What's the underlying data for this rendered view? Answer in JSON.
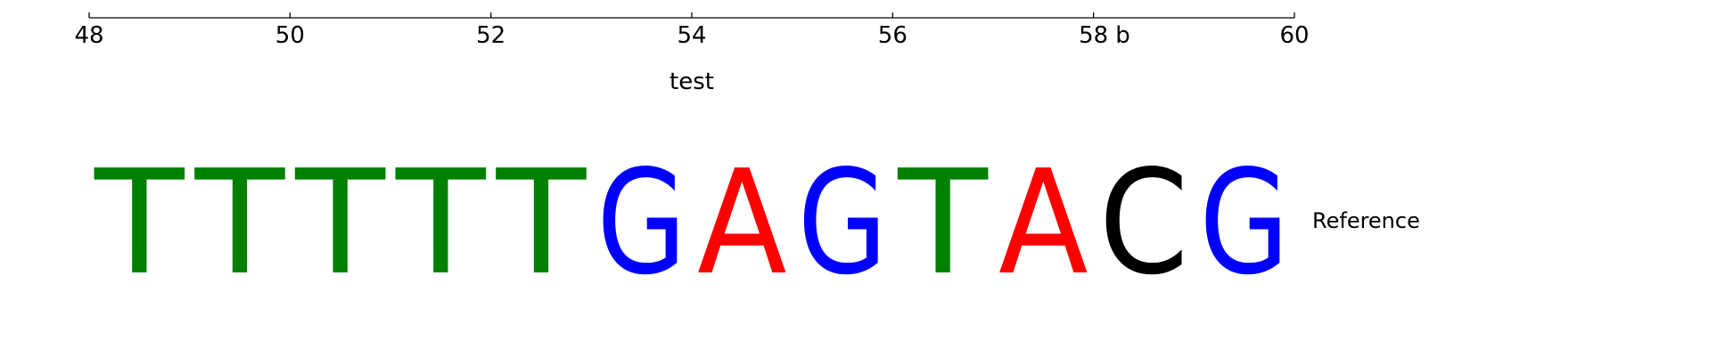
{
  "chart_data": {
    "type": "sequence_logo",
    "xlabel": "test",
    "xlim": [
      48,
      60
    ],
    "xticks": [
      48,
      50,
      52,
      54,
      56,
      58,
      60
    ],
    "tick_labels": [
      "48",
      "50",
      "52",
      "54",
      "56",
      "58",
      "60"
    ],
    "annotation": "b",
    "annotation_x": 58.2,
    "track_label": "Reference",
    "sequence": [
      "T",
      "T",
      "T",
      "T",
      "T",
      "G",
      "A",
      "G",
      "T",
      "A",
      "C",
      "G"
    ],
    "start_position": 48,
    "base_colors": {
      "A": "#ff0000",
      "C": "#000000",
      "G": "#0000ff",
      "T": "#008000"
    }
  }
}
